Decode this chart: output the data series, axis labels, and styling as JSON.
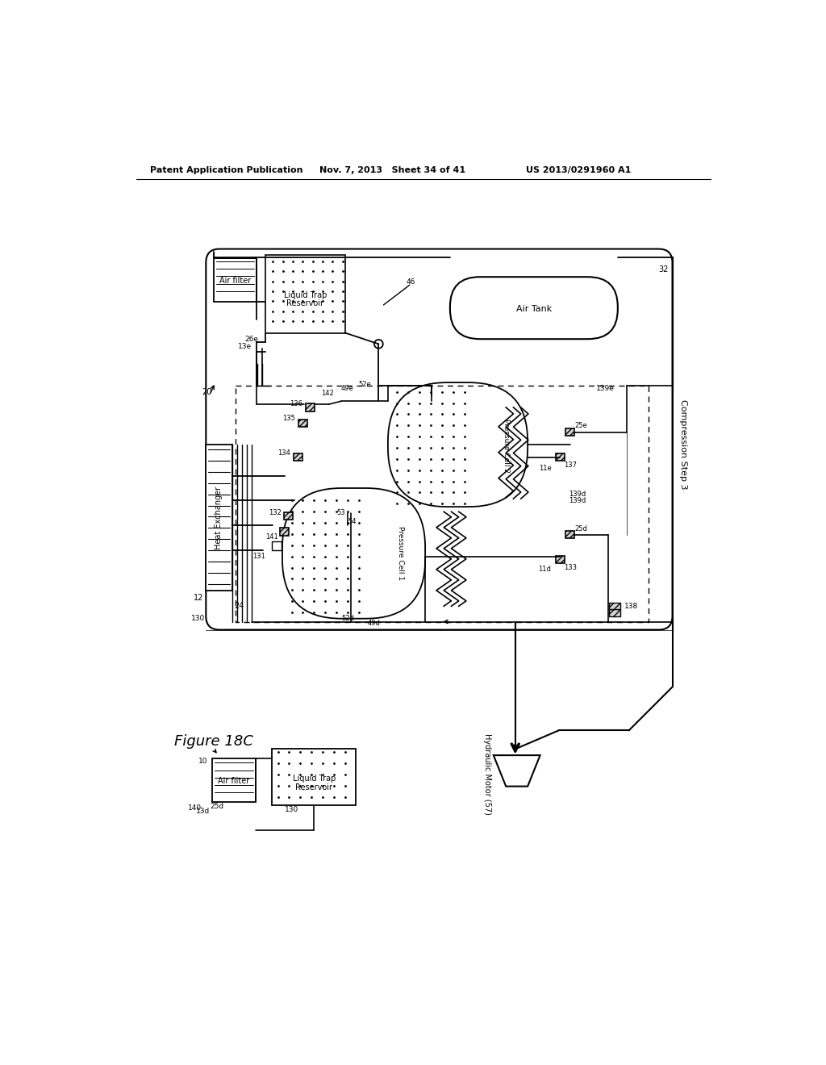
{
  "header_left": "Patent Application Publication",
  "header_mid": "Nov. 7, 2013   Sheet 34 of 41",
  "header_right": "US 2013/0291960 A1",
  "figure_label": "Figure 18C",
  "bg_color": "#ffffff",
  "lc": "#000000"
}
